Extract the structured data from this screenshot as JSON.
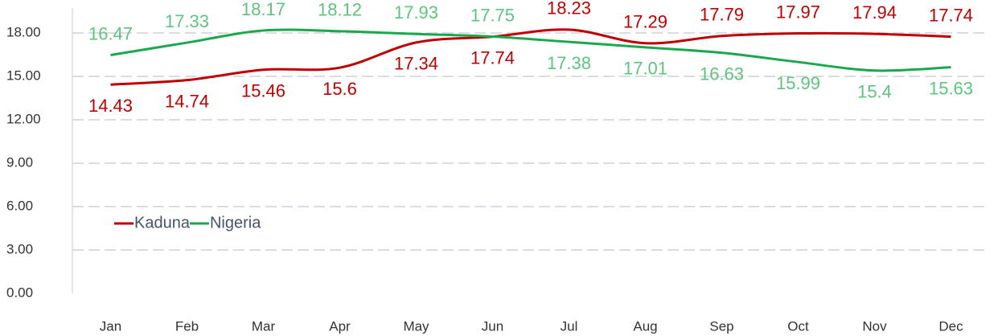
{
  "chart_data": {
    "type": "line",
    "categories": [
      "Jan",
      "Feb",
      "Mar",
      "Apr",
      "May",
      "Jun",
      "Jul",
      "Aug",
      "Sep",
      "Oct",
      "Nov",
      "Dec"
    ],
    "series": [
      {
        "name": "Kaduna",
        "color": "#c00000",
        "values": [
          14.43,
          14.74,
          15.46,
          15.6,
          17.34,
          17.74,
          18.23,
          17.29,
          17.79,
          17.97,
          17.94,
          17.74
        ]
      },
      {
        "name": "Nigeria",
        "color": "#1aa84d",
        "values": [
          16.47,
          17.33,
          18.17,
          18.12,
          17.93,
          17.75,
          17.38,
          17.01,
          16.63,
          15.99,
          15.4,
          15.63
        ]
      }
    ],
    "ylim": [
      0,
      20
    ],
    "yticks": [
      {
        "value": 0,
        "label": "0.00"
      },
      {
        "value": 3,
        "label": "3.00"
      },
      {
        "value": 6,
        "label": "6.00"
      },
      {
        "value": 9,
        "label": "9.00"
      },
      {
        "value": 12,
        "label": "12.00"
      },
      {
        "value": 15,
        "label": "15.00"
      },
      {
        "value": 18,
        "label": "18.00"
      }
    ],
    "grid": true,
    "legend": "lower left",
    "smooth": true
  }
}
